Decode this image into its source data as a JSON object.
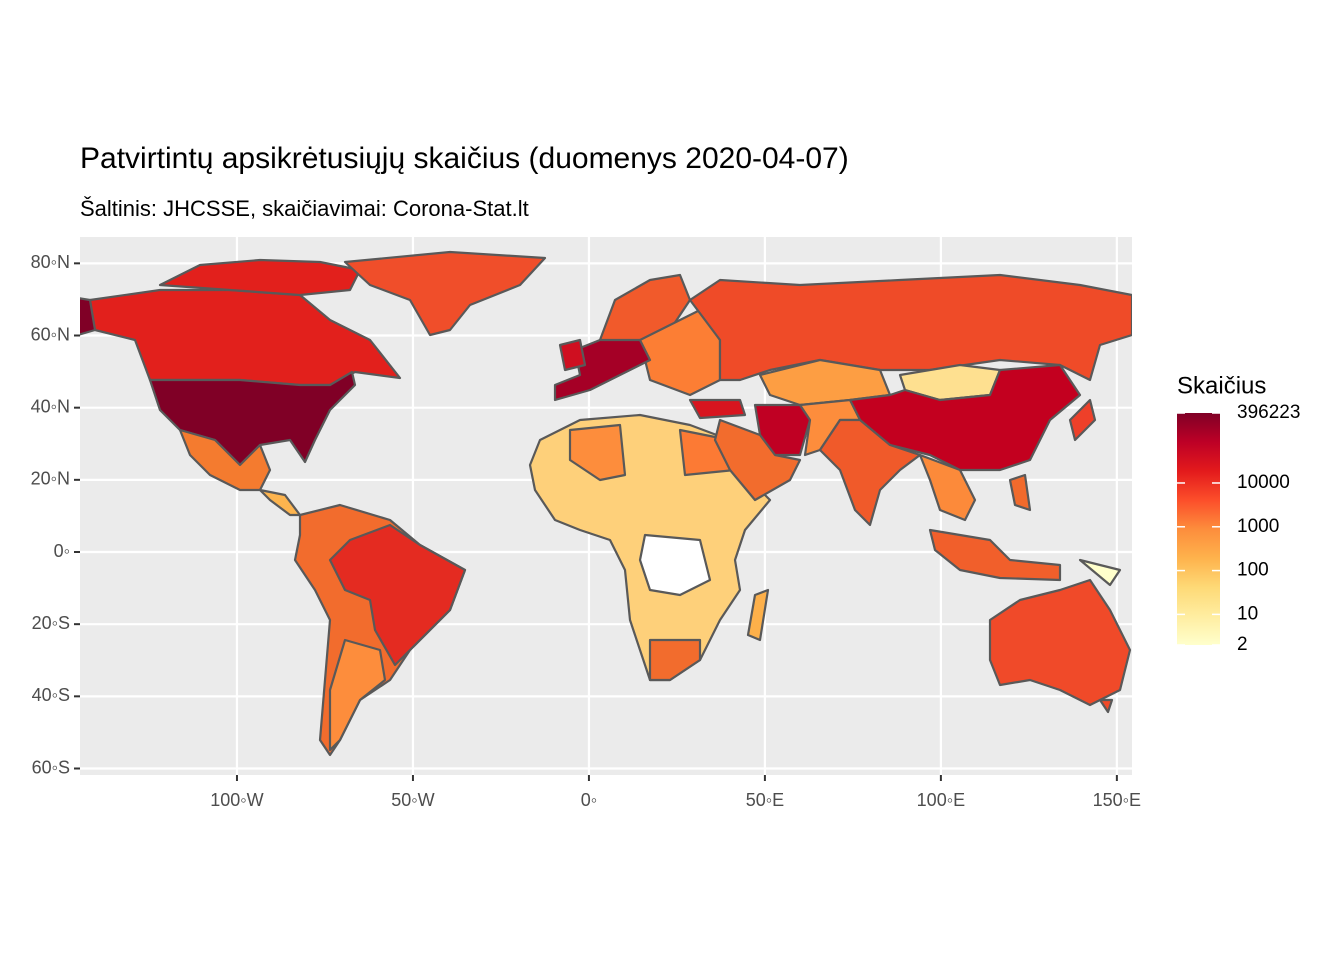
{
  "chart_data": {
    "type": "map",
    "title": "Patvirtintų apsikrėtusiųjų skaičius (duomenys 2020-04-07)",
    "subtitle": "Šaltinis: JHCSSE, skaičiavimai: Corona-Stat.lt",
    "xlim": [
      -144.6,
      154.3
    ],
    "ylim": [
      -61.8,
      87.3
    ],
    "xticks": [
      {
        "value": -100,
        "label": "100◦W"
      },
      {
        "value": -50,
        "label": "50◦W"
      },
      {
        "value": 0,
        "label": "0◦"
      },
      {
        "value": 50,
        "label": "50◦E"
      },
      {
        "value": 100,
        "label": "100◦E"
      },
      {
        "value": 150,
        "label": "150◦E"
      }
    ],
    "yticks": [
      {
        "value": 80,
        "label": "80◦N"
      },
      {
        "value": 60,
        "label": "60◦N"
      },
      {
        "value": 40,
        "label": "40◦N"
      },
      {
        "value": 20,
        "label": "20◦N"
      },
      {
        "value": 0,
        "label": "0◦"
      },
      {
        "value": -20,
        "label": "20◦S"
      },
      {
        "value": -40,
        "label": "40◦S"
      },
      {
        "value": -60,
        "label": "60◦S"
      }
    ],
    "grid": true,
    "legend": {
      "title": "Skaičius",
      "log_scale": true,
      "limits": [
        2,
        396223
      ],
      "ticks": [
        396223,
        10000,
        1000,
        100,
        10,
        2
      ],
      "colors": [
        "#ffffcc",
        "#ffeda0",
        "#fed976",
        "#feb24c",
        "#fd8d3c",
        "#fc4e2a",
        "#e31a1c",
        "#bd0026",
        "#800026"
      ]
    }
  }
}
